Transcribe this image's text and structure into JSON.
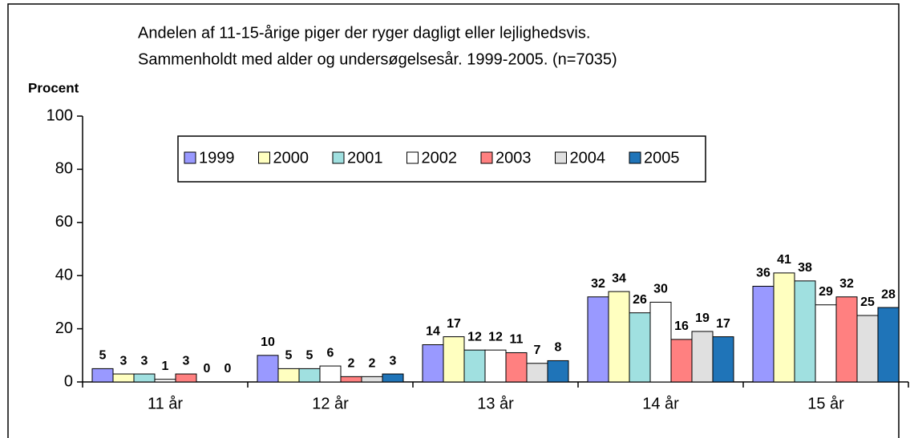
{
  "chart_data": {
    "type": "bar",
    "title": "Andelen af 11-15-årige piger der ryger dagligt eller lejlighedsvis.",
    "subtitle": "Sammenholdt med alder og undersøgelsesår. 1999-2005. (n=7035)",
    "y_label": "Procent",
    "categories": [
      "11 år",
      "12 år",
      "13 år",
      "14 år",
      "15 år"
    ],
    "series": [
      {
        "name": "1999",
        "color": "#9999ff",
        "values": [
          5,
          10,
          14,
          32,
          36
        ]
      },
      {
        "name": "2000",
        "color": "#ffffc0",
        "values": [
          3,
          5,
          17,
          34,
          41
        ]
      },
      {
        "name": "2001",
        "color": "#a0e0e0",
        "values": [
          3,
          5,
          12,
          26,
          38
        ]
      },
      {
        "name": "2002",
        "color": "#ffffff",
        "values": [
          1,
          6,
          12,
          30,
          29
        ]
      },
      {
        "name": "2003",
        "color": "#ff8080",
        "values": [
          3,
          2,
          11,
          16,
          32
        ]
      },
      {
        "name": "2004",
        "color": "#e0e0e0",
        "values": [
          0,
          2,
          7,
          19,
          25
        ]
      },
      {
        "name": "2005",
        "color": "#1f74b8",
        "values": [
          0,
          3,
          8,
          17,
          28
        ]
      }
    ],
    "ylim": [
      0,
      100
    ],
    "yticks": [
      0,
      20,
      40,
      60,
      80,
      100
    ],
    "grid": false
  }
}
